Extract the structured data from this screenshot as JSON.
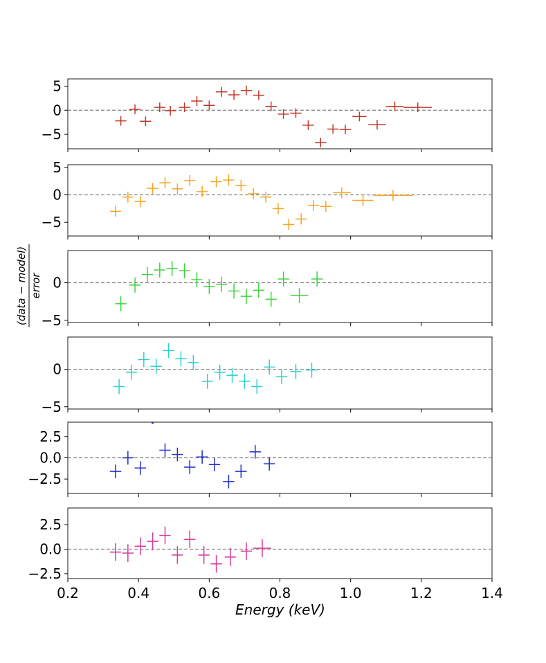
{
  "chart_data": {
    "type": "scatter",
    "title": "",
    "xlabel": "Energy (keV)",
    "ylabel": {
      "numerator": "(data − model)",
      "denominator": "error"
    },
    "xlim": [
      0.2,
      1.4
    ],
    "xticks": [
      0.2,
      0.4,
      0.6,
      0.8,
      1.0,
      1.2,
      1.4
    ],
    "xtick_labels": [
      "0.2",
      "0.4",
      "0.6",
      "0.8",
      "1.0",
      "1.2",
      "1.4"
    ],
    "panels": [
      {
        "name": "panel-1",
        "color": "#c0392b",
        "ylim": [
          -8,
          6.5
        ],
        "yticks": [
          -5,
          0,
          5
        ],
        "ytick_labels": [
          "−5",
          "0",
          "5"
        ],
        "points": [
          {
            "x": 0.35,
            "y": -2.2,
            "xerr": 0.016,
            "yerr": 1.0
          },
          {
            "x": 0.39,
            "y": 0.2,
            "xerr": 0.016,
            "yerr": 1.0
          },
          {
            "x": 0.42,
            "y": -2.3,
            "xerr": 0.016,
            "yerr": 1.0
          },
          {
            "x": 0.46,
            "y": 0.6,
            "xerr": 0.016,
            "yerr": 1.0
          },
          {
            "x": 0.49,
            "y": -0.1,
            "xerr": 0.016,
            "yerr": 1.0
          },
          {
            "x": 0.53,
            "y": 0.6,
            "xerr": 0.016,
            "yerr": 1.0
          },
          {
            "x": 0.565,
            "y": 1.9,
            "xerr": 0.016,
            "yerr": 1.0
          },
          {
            "x": 0.6,
            "y": 1.0,
            "xerr": 0.016,
            "yerr": 1.0
          },
          {
            "x": 0.635,
            "y": 3.8,
            "xerr": 0.016,
            "yerr": 1.0
          },
          {
            "x": 0.67,
            "y": 3.2,
            "xerr": 0.016,
            "yerr": 1.0
          },
          {
            "x": 0.705,
            "y": 4.1,
            "xerr": 0.016,
            "yerr": 1.0
          },
          {
            "x": 0.74,
            "y": 3.1,
            "xerr": 0.016,
            "yerr": 1.0
          },
          {
            "x": 0.775,
            "y": 0.8,
            "xerr": 0.016,
            "yerr": 1.0
          },
          {
            "x": 0.81,
            "y": -0.8,
            "xerr": 0.016,
            "yerr": 1.0
          },
          {
            "x": 0.845,
            "y": -0.6,
            "xerr": 0.016,
            "yerr": 1.0
          },
          {
            "x": 0.88,
            "y": -3.1,
            "xerr": 0.016,
            "yerr": 1.0
          },
          {
            "x": 0.915,
            "y": -6.7,
            "xerr": 0.016,
            "yerr": 1.0
          },
          {
            "x": 0.95,
            "y": -3.9,
            "xerr": 0.016,
            "yerr": 1.0
          },
          {
            "x": 0.985,
            "y": -4.0,
            "xerr": 0.016,
            "yerr": 1.0
          },
          {
            "x": 1.025,
            "y": -1.3,
            "xerr": 0.02,
            "yerr": 1.0
          },
          {
            "x": 1.075,
            "y": -3.0,
            "xerr": 0.025,
            "yerr": 1.0
          },
          {
            "x": 1.125,
            "y": 0.8,
            "xerr": 0.025,
            "yerr": 1.0
          },
          {
            "x": 1.19,
            "y": 0.6,
            "xerr": 0.04,
            "yerr": 1.0
          }
        ]
      },
      {
        "name": "panel-2",
        "color": "#f5a623",
        "ylim": [
          -7.5,
          5.5
        ],
        "yticks": [
          -5,
          0,
          5
        ],
        "ytick_labels": [
          "−5",
          "0",
          "5"
        ],
        "points": [
          {
            "x": 0.335,
            "y": -3.0,
            "xerr": 0.016,
            "yerr": 1.0
          },
          {
            "x": 0.37,
            "y": -0.4,
            "xerr": 0.016,
            "yerr": 1.0
          },
          {
            "x": 0.405,
            "y": -1.2,
            "xerr": 0.016,
            "yerr": 1.0
          },
          {
            "x": 0.44,
            "y": 1.2,
            "xerr": 0.016,
            "yerr": 1.0
          },
          {
            "x": 0.475,
            "y": 2.2,
            "xerr": 0.016,
            "yerr": 1.0
          },
          {
            "x": 0.51,
            "y": 1.1,
            "xerr": 0.016,
            "yerr": 1.0
          },
          {
            "x": 0.545,
            "y": 2.6,
            "xerr": 0.016,
            "yerr": 1.0
          },
          {
            "x": 0.58,
            "y": 0.6,
            "xerr": 0.016,
            "yerr": 1.0
          },
          {
            "x": 0.62,
            "y": 2.4,
            "xerr": 0.016,
            "yerr": 1.0
          },
          {
            "x": 0.655,
            "y": 2.7,
            "xerr": 0.016,
            "yerr": 1.0
          },
          {
            "x": 0.69,
            "y": 1.7,
            "xerr": 0.016,
            "yerr": 1.0
          },
          {
            "x": 0.725,
            "y": 0.2,
            "xerr": 0.016,
            "yerr": 1.0
          },
          {
            "x": 0.76,
            "y": -0.4,
            "xerr": 0.016,
            "yerr": 1.0
          },
          {
            "x": 0.795,
            "y": -2.5,
            "xerr": 0.016,
            "yerr": 1.0
          },
          {
            "x": 0.825,
            "y": -5.4,
            "xerr": 0.016,
            "yerr": 1.0
          },
          {
            "x": 0.86,
            "y": -4.4,
            "xerr": 0.016,
            "yerr": 1.0
          },
          {
            "x": 0.895,
            "y": -1.9,
            "xerr": 0.016,
            "yerr": 1.0
          },
          {
            "x": 0.93,
            "y": -2.1,
            "xerr": 0.016,
            "yerr": 1.0
          },
          {
            "x": 0.975,
            "y": 0.4,
            "xerr": 0.025,
            "yerr": 1.0
          },
          {
            "x": 1.035,
            "y": -1.0,
            "xerr": 0.03,
            "yerr": 1.0
          },
          {
            "x": 1.12,
            "y": -0.1,
            "xerr": 0.055,
            "yerr": 1.0
          }
        ]
      },
      {
        "name": "panel-3",
        "color": "#3cd23c",
        "ylim": [
          -5.3,
          4.3
        ],
        "yticks": [
          -5,
          0
        ],
        "ytick_labels": [
          "−5",
          "0"
        ],
        "points": [
          {
            "x": 0.35,
            "y": -2.8,
            "xerr": 0.016,
            "yerr": 1.0
          },
          {
            "x": 0.39,
            "y": -0.3,
            "xerr": 0.016,
            "yerr": 1.0
          },
          {
            "x": 0.425,
            "y": 1.1,
            "xerr": 0.016,
            "yerr": 1.0
          },
          {
            "x": 0.46,
            "y": 1.7,
            "xerr": 0.016,
            "yerr": 1.0
          },
          {
            "x": 0.495,
            "y": 1.9,
            "xerr": 0.016,
            "yerr": 1.0
          },
          {
            "x": 0.53,
            "y": 1.6,
            "xerr": 0.016,
            "yerr": 1.0
          },
          {
            "x": 0.565,
            "y": 0.4,
            "xerr": 0.016,
            "yerr": 1.0
          },
          {
            "x": 0.6,
            "y": -0.5,
            "xerr": 0.016,
            "yerr": 1.0
          },
          {
            "x": 0.635,
            "y": -0.2,
            "xerr": 0.016,
            "yerr": 1.0
          },
          {
            "x": 0.67,
            "y": -1.1,
            "xerr": 0.016,
            "yerr": 1.0
          },
          {
            "x": 0.705,
            "y": -1.8,
            "xerr": 0.016,
            "yerr": 1.0
          },
          {
            "x": 0.74,
            "y": -1.0,
            "xerr": 0.016,
            "yerr": 1.0
          },
          {
            "x": 0.775,
            "y": -2.2,
            "xerr": 0.016,
            "yerr": 1.0
          },
          {
            "x": 0.81,
            "y": 0.5,
            "xerr": 0.016,
            "yerr": 1.0
          },
          {
            "x": 0.855,
            "y": -1.7,
            "xerr": 0.025,
            "yerr": 1.0
          },
          {
            "x": 0.905,
            "y": 0.5,
            "xerr": 0.016,
            "yerr": 1.0
          }
        ]
      },
      {
        "name": "panel-4",
        "color": "#2ed0d0",
        "ylim": [
          -5.3,
          4.3
        ],
        "yticks": [
          -5,
          0
        ],
        "ytick_labels": [
          "−5",
          "0"
        ],
        "points": [
          {
            "x": 0.345,
            "y": -2.3,
            "xerr": 0.016,
            "yerr": 1.0
          },
          {
            "x": 0.38,
            "y": -0.4,
            "xerr": 0.016,
            "yerr": 1.0
          },
          {
            "x": 0.415,
            "y": 1.3,
            "xerr": 0.016,
            "yerr": 1.0
          },
          {
            "x": 0.45,
            "y": 0.4,
            "xerr": 0.016,
            "yerr": 1.0
          },
          {
            "x": 0.485,
            "y": 2.5,
            "xerr": 0.016,
            "yerr": 1.0
          },
          {
            "x": 0.52,
            "y": 1.4,
            "xerr": 0.016,
            "yerr": 1.0
          },
          {
            "x": 0.555,
            "y": 0.9,
            "xerr": 0.016,
            "yerr": 1.0
          },
          {
            "x": 0.595,
            "y": -1.6,
            "xerr": 0.016,
            "yerr": 1.0
          },
          {
            "x": 0.63,
            "y": -0.4,
            "xerr": 0.016,
            "yerr": 1.0
          },
          {
            "x": 0.665,
            "y": -0.8,
            "xerr": 0.016,
            "yerr": 1.0
          },
          {
            "x": 0.7,
            "y": -1.6,
            "xerr": 0.016,
            "yerr": 1.0
          },
          {
            "x": 0.735,
            "y": -2.3,
            "xerr": 0.016,
            "yerr": 1.0
          },
          {
            "x": 0.77,
            "y": 0.3,
            "xerr": 0.016,
            "yerr": 1.0
          },
          {
            "x": 0.805,
            "y": -1.0,
            "xerr": 0.016,
            "yerr": 1.0
          },
          {
            "x": 0.845,
            "y": -0.3,
            "xerr": 0.016,
            "yerr": 1.0
          },
          {
            "x": 0.89,
            "y": -0.1,
            "xerr": 0.016,
            "yerr": 1.0
          }
        ]
      },
      {
        "name": "panel-5",
        "color": "#1f2ccc",
        "ylim": [
          -4.2,
          4.2
        ],
        "yticks": [
          -2.5,
          0,
          2.5
        ],
        "ytick_labels": [
          "−2.5",
          "0.0",
          "2.5"
        ],
        "points": [
          {
            "x": 0.335,
            "y": -1.6,
            "xerr": 0.016,
            "yerr": 0.8
          },
          {
            "x": 0.37,
            "y": 0.0,
            "xerr": 0.016,
            "yerr": 0.8
          },
          {
            "x": 0.405,
            "y": -1.2,
            "xerr": 0.016,
            "yerr": 0.8
          },
          {
            "x": 0.44,
            "y": 4.1,
            "xerr": 0.003,
            "yerr": 0.1
          },
          {
            "x": 0.475,
            "y": 0.9,
            "xerr": 0.016,
            "yerr": 0.8
          },
          {
            "x": 0.51,
            "y": 0.4,
            "xerr": 0.016,
            "yerr": 0.8
          },
          {
            "x": 0.545,
            "y": -1.1,
            "xerr": 0.016,
            "yerr": 0.8
          },
          {
            "x": 0.58,
            "y": 0.1,
            "xerr": 0.016,
            "yerr": 0.8
          },
          {
            "x": 0.615,
            "y": -0.8,
            "xerr": 0.016,
            "yerr": 0.8
          },
          {
            "x": 0.655,
            "y": -2.8,
            "xerr": 0.016,
            "yerr": 0.8
          },
          {
            "x": 0.69,
            "y": -1.6,
            "xerr": 0.016,
            "yerr": 0.8
          },
          {
            "x": 0.73,
            "y": 0.7,
            "xerr": 0.016,
            "yerr": 0.8
          },
          {
            "x": 0.77,
            "y": -0.7,
            "xerr": 0.016,
            "yerr": 0.8
          }
        ]
      },
      {
        "name": "panel-6",
        "color": "#d63a9c",
        "ylim": [
          -3.0,
          4.2
        ],
        "yticks": [
          -2.5,
          0,
          2.5
        ],
        "ytick_labels": [
          "−2.5",
          "0.0",
          "2.5"
        ],
        "points": [
          {
            "x": 0.335,
            "y": -0.3,
            "xerr": 0.016,
            "yerr": 0.9
          },
          {
            "x": 0.37,
            "y": -0.4,
            "xerr": 0.016,
            "yerr": 0.9
          },
          {
            "x": 0.405,
            "y": 0.3,
            "xerr": 0.016,
            "yerr": 0.9
          },
          {
            "x": 0.44,
            "y": 0.8,
            "xerr": 0.016,
            "yerr": 0.9
          },
          {
            "x": 0.475,
            "y": 1.4,
            "xerr": 0.016,
            "yerr": 0.9
          },
          {
            "x": 0.51,
            "y": -0.6,
            "xerr": 0.016,
            "yerr": 0.9
          },
          {
            "x": 0.545,
            "y": 1.0,
            "xerr": 0.016,
            "yerr": 0.9
          },
          {
            "x": 0.585,
            "y": -0.6,
            "xerr": 0.016,
            "yerr": 0.9
          },
          {
            "x": 0.62,
            "y": -1.5,
            "xerr": 0.016,
            "yerr": 0.9
          },
          {
            "x": 0.66,
            "y": -0.8,
            "xerr": 0.016,
            "yerr": 0.9
          },
          {
            "x": 0.705,
            "y": -0.2,
            "xerr": 0.016,
            "yerr": 0.9
          },
          {
            "x": 0.75,
            "y": 0.1,
            "xerr": 0.025,
            "yerr": 0.9
          }
        ]
      }
    ]
  }
}
